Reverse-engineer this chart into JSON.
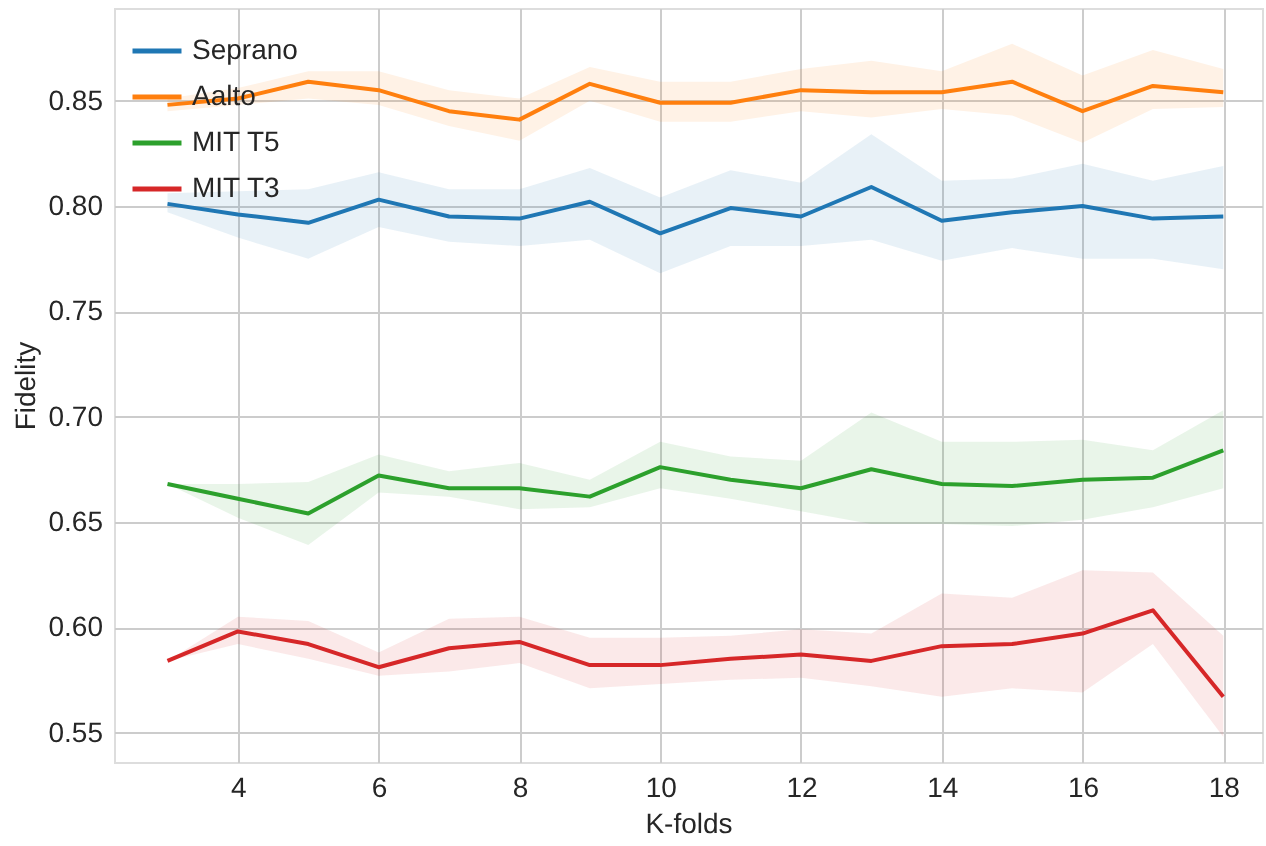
{
  "chart_data": {
    "type": "line",
    "xlabel": "K-folds",
    "ylabel": "Fidelity",
    "x": [
      3,
      4,
      5,
      6,
      7,
      8,
      9,
      10,
      11,
      12,
      13,
      14,
      15,
      16,
      17,
      18
    ],
    "xlim": [
      2.24,
      18.55
    ],
    "xticks": [
      4,
      6,
      8,
      10,
      12,
      14,
      16,
      18
    ],
    "ylim": [
      0.536,
      0.894
    ],
    "yticks": [
      0.55,
      {
        "value": 0.6,
        "label": "0.60"
      },
      0.65,
      {
        "value": 0.7,
        "label": "0.70"
      },
      0.75,
      {
        "value": 0.8,
        "label": "0.80"
      },
      0.85
    ],
    "grid": true,
    "legend": "top left",
    "marker": "none",
    "line_style": "solid",
    "series": [
      {
        "name": "Seprano",
        "color": "#1f77b4",
        "values": [
          0.801,
          0.796,
          0.792,
          0.803,
          0.795,
          0.794,
          0.802,
          0.787,
          0.799,
          0.795,
          0.809,
          0.793,
          0.797,
          0.8,
          0.794,
          0.795
        ],
        "lower": [
          0.797,
          0.785,
          0.775,
          0.79,
          0.783,
          0.781,
          0.784,
          0.768,
          0.781,
          0.781,
          0.784,
          0.774,
          0.78,
          0.775,
          0.775,
          0.77
        ],
        "upper": [
          0.806,
          0.807,
          0.808,
          0.816,
          0.808,
          0.808,
          0.818,
          0.804,
          0.817,
          0.811,
          0.834,
          0.812,
          0.813,
          0.82,
          0.812,
          0.819
        ]
      },
      {
        "name": "Aalto",
        "color": "#ff7f0e",
        "values": [
          0.848,
          0.851,
          0.859,
          0.855,
          0.845,
          0.841,
          0.858,
          0.849,
          0.849,
          0.855,
          0.854,
          0.854,
          0.859,
          0.845,
          0.857,
          0.854
        ],
        "lower": [
          0.845,
          0.848,
          0.851,
          0.848,
          0.838,
          0.831,
          0.85,
          0.84,
          0.84,
          0.845,
          0.842,
          0.846,
          0.843,
          0.83,
          0.846,
          0.847
        ],
        "upper": [
          0.851,
          0.856,
          0.864,
          0.864,
          0.855,
          0.851,
          0.866,
          0.859,
          0.859,
          0.865,
          0.869,
          0.864,
          0.877,
          0.862,
          0.874,
          0.865
        ]
      },
      {
        "name": "MIT T5",
        "color": "#2ca02c",
        "values": [
          0.668,
          0.661,
          0.654,
          0.672,
          0.666,
          0.666,
          0.662,
          0.676,
          0.67,
          0.666,
          0.675,
          0.668,
          0.667,
          0.67,
          0.671,
          0.684
        ],
        "lower": [
          0.668,
          0.652,
          0.639,
          0.664,
          0.662,
          0.656,
          0.657,
          0.666,
          0.661,
          0.655,
          0.649,
          0.649,
          0.648,
          0.651,
          0.657,
          0.666
        ],
        "upper": [
          0.668,
          0.668,
          0.669,
          0.682,
          0.674,
          0.678,
          0.67,
          0.688,
          0.681,
          0.679,
          0.702,
          0.688,
          0.688,
          0.689,
          0.684,
          0.703
        ]
      },
      {
        "name": "MIT T3",
        "color": "#d62728",
        "values": [
          0.584,
          0.598,
          0.592,
          0.581,
          0.59,
          0.593,
          0.582,
          0.582,
          0.585,
          0.587,
          0.584,
          0.591,
          0.592,
          0.597,
          0.608,
          0.567
        ],
        "lower": [
          0.584,
          0.592,
          0.585,
          0.577,
          0.579,
          0.583,
          0.571,
          0.573,
          0.575,
          0.576,
          0.572,
          0.567,
          0.571,
          0.569,
          0.592,
          0.548
        ],
        "upper": [
          0.584,
          0.605,
          0.603,
          0.588,
          0.604,
          0.605,
          0.595,
          0.595,
          0.596,
          0.599,
          0.597,
          0.616,
          0.614,
          0.627,
          0.626,
          0.596
        ]
      }
    ]
  }
}
